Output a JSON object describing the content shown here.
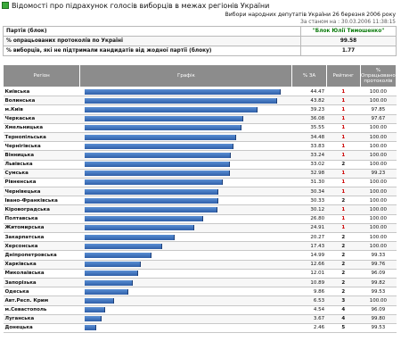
{
  "window": {
    "title": "Відомості про підрахунок голосів виборців в межах регіонів України"
  },
  "meta": {
    "election": "Вибори народних депутатів України 26 березня 2006 року",
    "as_of": "За станом на : 30.03.2006 11:38:15"
  },
  "info": [
    {
      "label": "Партія (блок)",
      "value": "\"Блок Юлії Тимошенко\""
    },
    {
      "label": "% опрацьованих протоколів по Україні",
      "value": "99.58"
    },
    {
      "label": "% виборців, які не підтримали кандидатів від жодної партії (блоку)",
      "value": "1.77"
    }
  ],
  "table": {
    "headers": {
      "region": "Регіон",
      "chart": "Графік",
      "pct": "% ЗА",
      "rank": "Рейтинг",
      "processed": "% Опрацьовано протоколів"
    },
    "max_pct": 47,
    "rows": [
      {
        "region": "Київська",
        "pct": "44.47",
        "rank": "1",
        "processed": "100.00"
      },
      {
        "region": "Волинська",
        "pct": "43.82",
        "rank": "1",
        "processed": "100.00"
      },
      {
        "region": "м.Київ",
        "pct": "39.23",
        "rank": "1",
        "processed": "97.85"
      },
      {
        "region": "Черкаська",
        "pct": "36.08",
        "rank": "1",
        "processed": "97.67"
      },
      {
        "region": "Хмельницька",
        "pct": "35.55",
        "rank": "1",
        "processed": "100.00"
      },
      {
        "region": "Тернопільська",
        "pct": "34.48",
        "rank": "1",
        "processed": "100.00"
      },
      {
        "region": "Чернігівська",
        "pct": "33.83",
        "rank": "1",
        "processed": "100.00"
      },
      {
        "region": "Вінницька",
        "pct": "33.24",
        "rank": "1",
        "processed": "100.00"
      },
      {
        "region": "Львівська",
        "pct": "33.02",
        "rank": "2",
        "processed": "100.00"
      },
      {
        "region": "Сумська",
        "pct": "32.98",
        "rank": "1",
        "processed": "99.23"
      },
      {
        "region": "Рівненська",
        "pct": "31.30",
        "rank": "1",
        "processed": "100.00"
      },
      {
        "region": "Чернівецька",
        "pct": "30.34",
        "rank": "1",
        "processed": "100.00"
      },
      {
        "region": "Івано-Франківська",
        "pct": "30.33",
        "rank": "2",
        "processed": "100.00"
      },
      {
        "region": "Кіровоградська",
        "pct": "30.12",
        "rank": "1",
        "processed": "100.00"
      },
      {
        "region": "Полтавська",
        "pct": "26.80",
        "rank": "1",
        "processed": "100.00"
      },
      {
        "region": "Житомирська",
        "pct": "24.91",
        "rank": "1",
        "processed": "100.00"
      },
      {
        "region": "Закарпатська",
        "pct": "20.27",
        "rank": "2",
        "processed": "100.00"
      },
      {
        "region": "Херсонська",
        "pct": "17.43",
        "rank": "2",
        "processed": "100.00"
      },
      {
        "region": "Дніпропетровська",
        "pct": "14.99",
        "rank": "2",
        "processed": "99.33"
      },
      {
        "region": "Харківська",
        "pct": "12.66",
        "rank": "2",
        "processed": "99.76"
      },
      {
        "region": "Миколаївська",
        "pct": "12.01",
        "rank": "2",
        "processed": "96.09"
      },
      {
        "region": "Запорізька",
        "pct": "10.89",
        "rank": "2",
        "processed": "99.82"
      },
      {
        "region": "Одеська",
        "pct": "9.86",
        "rank": "2",
        "processed": "99.53"
      },
      {
        "region": "Авт.Респ. Крим",
        "pct": "6.53",
        "rank": "3",
        "processed": "100.00"
      },
      {
        "region": "м.Севастополь",
        "pct": "4.54",
        "rank": "4",
        "processed": "96.09"
      },
      {
        "region": "Луганська",
        "pct": "3.67",
        "rank": "4",
        "processed": "99.80"
      },
      {
        "region": "Донецька",
        "pct": "2.46",
        "rank": "5",
        "processed": "99.53"
      }
    ]
  }
}
